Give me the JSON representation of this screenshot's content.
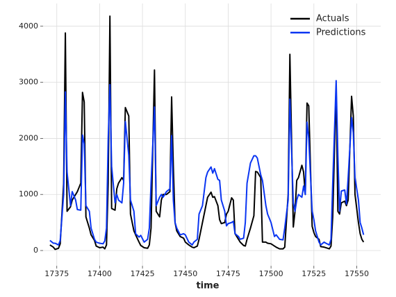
{
  "chart_data": {
    "type": "line",
    "xlabel": "time",
    "x": [
      17371,
      17373,
      17374,
      17376,
      17377,
      17379,
      17380,
      17381,
      17383,
      17384,
      17386,
      17387,
      17389,
      17390,
      17391,
      17392,
      17394,
      17395,
      17397,
      17398,
      17400,
      17402,
      17403,
      17404,
      17405,
      17406,
      17407,
      17409,
      17410,
      17411,
      17413,
      17414,
      17415,
      17417,
      17418,
      17420,
      17421,
      17423,
      17424,
      17426,
      17428,
      17429,
      17430,
      17432,
      17433,
      17435,
      17436,
      17437,
      17439,
      17441,
      17442,
      17443,
      17444,
      17445,
      17447,
      17449,
      17450,
      17452,
      17454,
      17455,
      17457,
      17458,
      17460,
      17462,
      17463,
      17465,
      17466,
      17467,
      17469,
      17470,
      17471,
      17473,
      17474,
      17475,
      17477,
      17478,
      17479,
      17481,
      17482,
      17484,
      17485,
      17486,
      17488,
      17490,
      17491,
      17492,
      17494,
      17495,
      17497,
      17498,
      17500,
      17502,
      17503,
      17505,
      17507,
      17508,
      17510,
      17511,
      17513,
      17514,
      17515,
      17516,
      17518,
      17519,
      17520,
      17521,
      17522,
      17524,
      17525,
      17526,
      17528,
      17529,
      17531,
      17532,
      17534,
      17535,
      17536,
      17538,
      17539,
      17540,
      17541,
      17543,
      17544,
      17545,
      17547,
      17548,
      17549,
      17551,
      17552,
      17553,
      17554
    ],
    "series": [
      {
        "name": "Actuals",
        "color": "#000000",
        "values": [
          100,
          60,
          20,
          40,
          120,
          1200,
          3880,
          700,
          780,
          900,
          1000,
          1050,
          1200,
          2820,
          2650,
          600,
          400,
          280,
          180,
          80,
          50,
          60,
          30,
          100,
          1200,
          4180,
          750,
          720,
          1100,
          1200,
          1300,
          1250,
          2550,
          2400,
          650,
          350,
          280,
          150,
          90,
          50,
          40,
          100,
          400,
          3220,
          700,
          600,
          900,
          1000,
          1000,
          1050,
          2740,
          1500,
          500,
          350,
          250,
          220,
          150,
          100,
          60,
          50,
          80,
          200,
          500,
          800,
          950,
          1040,
          950,
          960,
          800,
          550,
          480,
          500,
          650,
          700,
          940,
          900,
          300,
          200,
          150,
          90,
          80,
          200,
          400,
          620,
          1410,
          1400,
          1300,
          150,
          150,
          130,
          120,
          80,
          60,
          30,
          30,
          60,
          1000,
          3500,
          420,
          700,
          1250,
          1300,
          1520,
          1400,
          1000,
          2630,
          2580,
          430,
          320,
          250,
          200,
          70,
          60,
          50,
          30,
          80,
          600,
          2900,
          700,
          650,
          850,
          880,
          800,
          900,
          2750,
          2400,
          1000,
          500,
          300,
          200,
          150
        ]
      },
      {
        "name": "Predictions",
        "color": "#0a35f2",
        "values": [
          180,
          130,
          130,
          100,
          180,
          1000,
          2830,
          1400,
          800,
          1050,
          900,
          730,
          720,
          2060,
          1900,
          800,
          700,
          400,
          200,
          150,
          130,
          120,
          170,
          400,
          2000,
          2960,
          1500,
          850,
          1000,
          900,
          850,
          1200,
          2300,
          1700,
          900,
          700,
          300,
          240,
          270,
          150,
          200,
          400,
          1200,
          2560,
          800,
          950,
          1000,
          950,
          1050,
          1100,
          2050,
          900,
          500,
          400,
          280,
          300,
          280,
          150,
          100,
          150,
          200,
          650,
          800,
          1300,
          1400,
          1490,
          1380,
          1460,
          1270,
          1250,
          900,
          700,
          440,
          480,
          500,
          520,
          300,
          250,
          200,
          220,
          500,
          1200,
          1560,
          1690,
          1690,
          1650,
          1350,
          1250,
          800,
          650,
          500,
          250,
          280,
          200,
          190,
          400,
          900,
          2700,
          850,
          700,
          900,
          1000,
          950,
          1150,
          1000,
          2290,
          2000,
          700,
          550,
          350,
          150,
          100,
          150,
          130,
          100,
          200,
          1200,
          3030,
          1700,
          700,
          1060,
          1080,
          830,
          1300,
          2370,
          2100,
          1300,
          900,
          500,
          400,
          280
        ]
      }
    ],
    "xlim": [
      17367,
      17564
    ],
    "xticks": [
      17375,
      17400,
      17425,
      17450,
      17475,
      17500,
      17525,
      17550
    ],
    "ylim": [
      -272,
      4406
    ],
    "yticks": [
      0,
      1000,
      2000,
      3000,
      4000
    ],
    "grid": true,
    "legend": "upper right"
  }
}
